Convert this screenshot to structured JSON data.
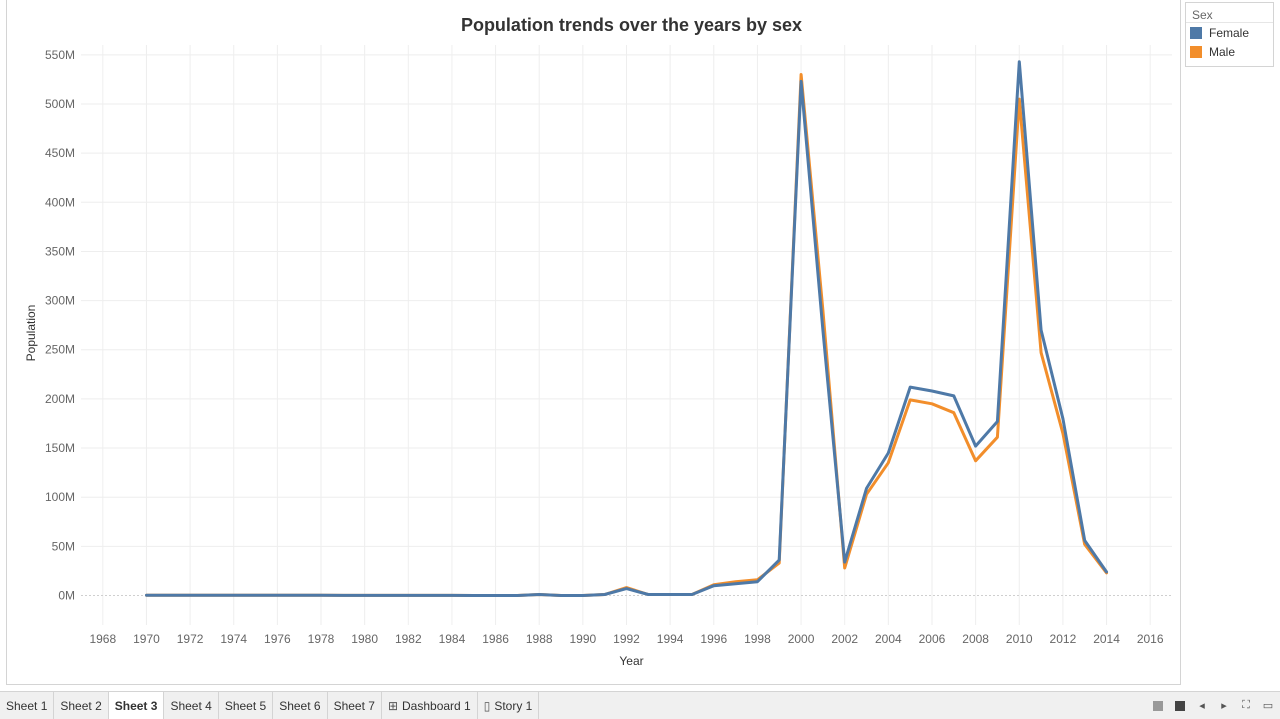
{
  "chart_data": {
    "type": "line",
    "title": "Population trends over the years by sex",
    "xlabel": "Year",
    "ylabel": "Population",
    "xlim": [
      1967,
      2017
    ],
    "ylim": [
      -30000000,
      560000000
    ],
    "x_ticks": [
      "1968",
      "1970",
      "1972",
      "1974",
      "1976",
      "1978",
      "1980",
      "1982",
      "1984",
      "1986",
      "1988",
      "1990",
      "1992",
      "1994",
      "1996",
      "1998",
      "2000",
      "2002",
      "2004",
      "2006",
      "2008",
      "2010",
      "2012",
      "2014",
      "2016"
    ],
    "y_ticks": [
      {
        "value": 0,
        "label": "0M"
      },
      {
        "value": 50000000,
        "label": "50M"
      },
      {
        "value": 100000000,
        "label": "100M"
      },
      {
        "value": 150000000,
        "label": "150M"
      },
      {
        "value": 200000000,
        "label": "200M"
      },
      {
        "value": 250000000,
        "label": "250M"
      },
      {
        "value": 300000000,
        "label": "300M"
      },
      {
        "value": 350000000,
        "label": "350M"
      },
      {
        "value": 400000000,
        "label": "400M"
      },
      {
        "value": 450000000,
        "label": "450M"
      },
      {
        "value": 500000000,
        "label": "500M"
      },
      {
        "value": 550000000,
        "label": "550M"
      }
    ],
    "grid": true,
    "legend_position": "top-right",
    "x": [
      1970,
      1971,
      1972,
      1973,
      1974,
      1975,
      1976,
      1977,
      1978,
      1979,
      1980,
      1981,
      1982,
      1983,
      1984,
      1985,
      1986,
      1987,
      1988,
      1989,
      1990,
      1991,
      1992,
      1993,
      1994,
      1995,
      1996,
      1997,
      1998,
      1999,
      2000,
      2001,
      2002,
      2003,
      2004,
      2005,
      2006,
      2007,
      2008,
      2009,
      2010,
      2011,
      2012,
      2013,
      2014
    ],
    "series": [
      {
        "name": "Male",
        "color": "#f28e2b",
        "values": [
          200000,
          200000,
          200000,
          200000,
          200000,
          200000,
          200000,
          200000,
          200000,
          100000,
          100000,
          100000,
          100000,
          100000,
          100000,
          0,
          0,
          0,
          1000000,
          0,
          0,
          1000000,
          8000000,
          1000000,
          1000000,
          1000000,
          11000000,
          14000000,
          16000000,
          33000000,
          530000000,
          290000000,
          28000000,
          103000000,
          135000000,
          199000000,
          195000000,
          186000000,
          137000000,
          161000000,
          505000000,
          247000000,
          165000000,
          52000000,
          23000000
        ]
      },
      {
        "name": "Female",
        "color": "#4e79a7",
        "values": [
          200000,
          200000,
          200000,
          200000,
          200000,
          200000,
          200000,
          200000,
          200000,
          100000,
          100000,
          100000,
          100000,
          100000,
          100000,
          0,
          0,
          0,
          1000000,
          0,
          0,
          1000000,
          7000000,
          1000000,
          1000000,
          1000000,
          10000000,
          12000000,
          14000000,
          36000000,
          523000000,
          270000000,
          34000000,
          109000000,
          145000000,
          212000000,
          208000000,
          203000000,
          152000000,
          177000000,
          543000000,
          270000000,
          180000000,
          56000000,
          24000000
        ]
      }
    ]
  },
  "legend": {
    "title": "Sex",
    "items": [
      {
        "label": "Female",
        "color": "#4e79a7"
      },
      {
        "label": "Male",
        "color": "#f28e2b"
      }
    ]
  },
  "tabs": [
    {
      "label": "Sheet 1",
      "active": false,
      "icon": ""
    },
    {
      "label": "Sheet 2",
      "active": false,
      "icon": ""
    },
    {
      "label": "Sheet 3",
      "active": true,
      "icon": ""
    },
    {
      "label": "Sheet 4",
      "active": false,
      "icon": ""
    },
    {
      "label": "Sheet 5",
      "active": false,
      "icon": ""
    },
    {
      "label": "Sheet 6",
      "active": false,
      "icon": ""
    },
    {
      "label": "Sheet 7",
      "active": false,
      "icon": ""
    },
    {
      "label": "Dashboard 1",
      "active": false,
      "icon": "dashboard-icon"
    },
    {
      "label": "Story 1",
      "active": false,
      "icon": "story-icon"
    }
  ]
}
